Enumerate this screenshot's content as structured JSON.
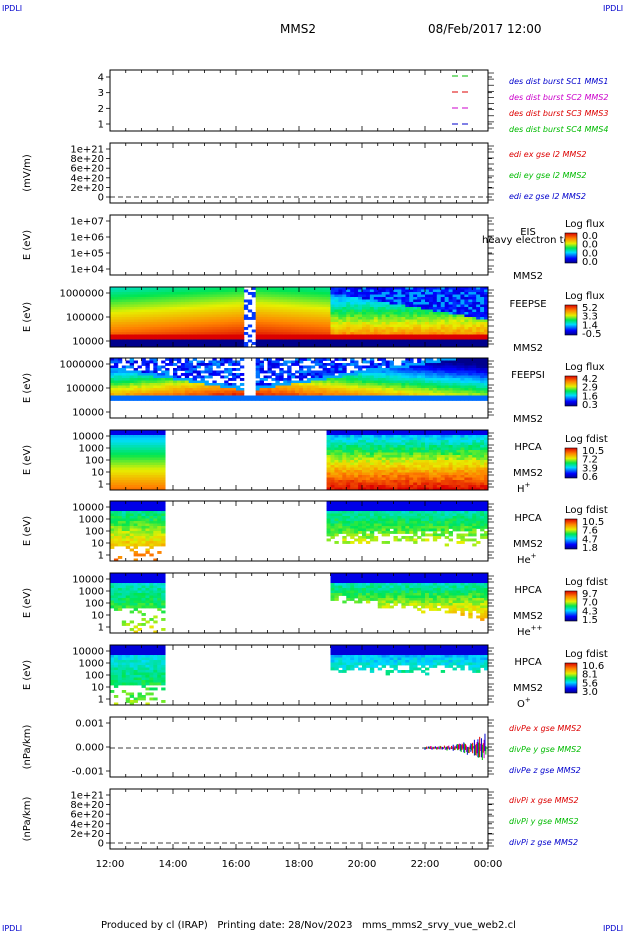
{
  "corner_label": "IPDLI",
  "header": {
    "spacecraft": "MMS2",
    "date_time": "08/Feb/2017 12:00"
  },
  "footer": "Produced by cl (IRAP)   Printing date: 28/Nov/2023   mms_mms2_srvy_vue_web2.cl",
  "colors": {
    "red": "#dd0000",
    "green": "#00bb00",
    "blue": "#0000cc",
    "magenta": "#cc00cc"
  },
  "chart_data": {
    "type": "stacked-timeseries",
    "x_ticks": [
      "12:00",
      "14:00",
      "16:00",
      "18:00",
      "20:00",
      "22:00",
      "00:00"
    ],
    "panels": [
      {
        "id": "burst",
        "type": "line",
        "y_ticks": [
          "4",
          "3",
          "2",
          "1"
        ],
        "legend": [
          {
            "text": "des dist burst SC1 MMS1",
            "color": "#0000cc"
          },
          {
            "text": "des dist burst SC2 MMS2",
            "color": "#cc00cc"
          },
          {
            "text": "des dist burst SC3 MMS3",
            "color": "#dd0000"
          },
          {
            "text": "des dist burst SC4 MMS4",
            "color": "#00bb00"
          }
        ]
      },
      {
        "id": "edi",
        "type": "line",
        "ylabel": "(mV/m)",
        "y_ticks": [
          "1e+21",
          "8e+20",
          "6e+20",
          "4e+20",
          "2e+20",
          "0"
        ],
        "legend": [
          {
            "text": "edi ex gse l2 MMS2",
            "color": "#dd0000"
          },
          {
            "text": "edi ey gse l2 MMS2",
            "color": "#00bb00"
          },
          {
            "text": "edi ez gse l2 MMS2",
            "color": "#0000cc"
          }
        ]
      },
      {
        "id": "eis",
        "type": "heatmap",
        "ylabel": "E (eV)",
        "y_ticks": [
          "1e+07",
          "1e+06",
          "1e+05",
          "1e+04"
        ],
        "instrument": "EIS",
        "overlay_text": "heavy electron to",
        "sc": "MMS2",
        "colorbar_title": "Log flux",
        "colorbar_ticks": [
          "0.0",
          "0.0",
          "0.0",
          "0.0"
        ]
      },
      {
        "id": "feepse",
        "type": "heatmap",
        "ylabel": "E (eV)",
        "y_ticks": [
          "1000000",
          "100000",
          "10000"
        ],
        "instrument": "FEEPSE",
        "sc": "MMS2",
        "colorbar_title": "Log flux",
        "colorbar_ticks": [
          "5.2",
          "3.3",
          "1.4",
          "-0.5"
        ]
      },
      {
        "id": "feepsi",
        "type": "heatmap",
        "ylabel": "E (eV)",
        "y_ticks": [
          "1000000",
          "100000",
          "10000"
        ],
        "instrument": "FEEPSI",
        "sc": "MMS2",
        "colorbar_title": "Log flux",
        "colorbar_ticks": [
          "4.2",
          "2.9",
          "1.6",
          "0.3"
        ]
      },
      {
        "id": "hpca_h",
        "type": "heatmap",
        "ylabel": "E (eV)",
        "y_ticks": [
          "10000",
          "1000",
          "100",
          "10",
          "1"
        ],
        "instrument": "HPCA",
        "sc": "MMS2",
        "species": "H",
        "species_sup": "+",
        "colorbar_title": "Log fdist",
        "colorbar_ticks": [
          "10.5",
          "7.2",
          "3.9",
          "0.6"
        ]
      },
      {
        "id": "hpca_he",
        "type": "heatmap",
        "ylabel": "E (eV)",
        "y_ticks": [
          "10000",
          "1000",
          "100",
          "10",
          "1"
        ],
        "instrument": "HPCA",
        "sc": "MMS2",
        "species": "He",
        "species_sup": "+",
        "colorbar_title": "Log fdist",
        "colorbar_ticks": [
          "10.5",
          "7.6",
          "4.7",
          "1.8"
        ]
      },
      {
        "id": "hpca_he2",
        "type": "heatmap",
        "ylabel": "E (eV)",
        "y_ticks": [
          "10000",
          "1000",
          "100",
          "10",
          "1"
        ],
        "instrument": "HPCA",
        "sc": "MMS2",
        "species": "He",
        "species_sup": "++",
        "colorbar_title": "Log fdist",
        "colorbar_ticks": [
          "9.7",
          "7.0",
          "4.3",
          "1.5"
        ]
      },
      {
        "id": "hpca_o",
        "type": "heatmap",
        "ylabel": "E (eV)",
        "y_ticks": [
          "10000",
          "1000",
          "100",
          "10",
          "1"
        ],
        "instrument": "HPCA",
        "sc": "MMS2",
        "species": "O",
        "species_sup": "+",
        "colorbar_title": "Log fdist",
        "colorbar_ticks": [
          "10.6",
          "8.1",
          "5.6",
          "3.0"
        ]
      },
      {
        "id": "divpe",
        "type": "line",
        "ylabel": "(nPa/km)",
        "y_ticks": [
          "0.001",
          "0.000",
          "-0.001"
        ],
        "legend": [
          {
            "text": "divPe x gse MMS2",
            "color": "#dd0000"
          },
          {
            "text": "divPe y gse MMS2",
            "color": "#00bb00"
          },
          {
            "text": "divPe z gse MMS2",
            "color": "#0000cc"
          }
        ]
      },
      {
        "id": "divpi",
        "type": "line",
        "ylabel": "(nPa/km)",
        "y_ticks": [
          "1e+21",
          "8e+20",
          "6e+20",
          "4e+20",
          "2e+20",
          "0"
        ],
        "legend": [
          {
            "text": "divPi x gse MMS2",
            "color": "#dd0000"
          },
          {
            "text": "divPi y gse MMS2",
            "color": "#00bb00"
          },
          {
            "text": "divPi z gse MMS2",
            "color": "#0000cc"
          }
        ]
      }
    ]
  }
}
